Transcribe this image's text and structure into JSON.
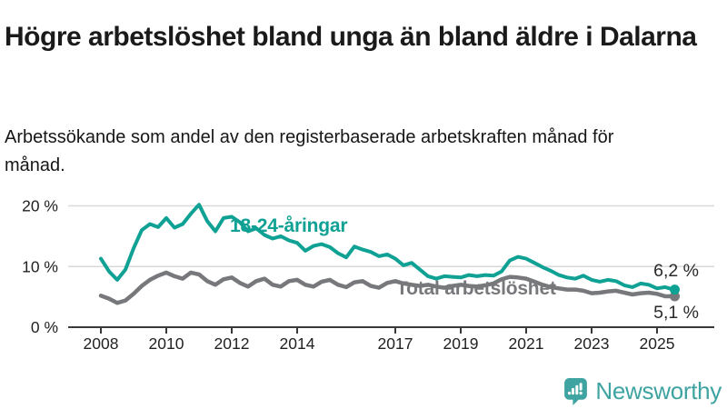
{
  "header": {
    "title": "Högre arbetslöshet bland unga än bland äldre i Dalarna",
    "subtitle": "Arbetssökande som andel av den registerbaserade arbetskraften månad för månad."
  },
  "chart_data": {
    "type": "line",
    "unit": "%",
    "grid": "horizontal-gridlines",
    "legend": "inline-labels-on-lines",
    "xlim": [
      2008,
      2025.6
    ],
    "ylim": [
      0,
      22
    ],
    "x": [
      2008.0,
      2008.25,
      2008.5,
      2008.75,
      2009.0,
      2009.25,
      2009.5,
      2009.75,
      2010.0,
      2010.25,
      2010.5,
      2010.75,
      2011.0,
      2011.25,
      2011.5,
      2011.75,
      2012.0,
      2012.25,
      2012.5,
      2012.75,
      2013.0,
      2013.25,
      2013.5,
      2013.75,
      2014.0,
      2014.25,
      2014.5,
      2014.75,
      2015.0,
      2015.25,
      2015.5,
      2015.75,
      2016.0,
      2016.25,
      2016.5,
      2016.75,
      2017.0,
      2017.25,
      2017.5,
      2017.75,
      2018.0,
      2018.25,
      2018.5,
      2018.75,
      2019.0,
      2019.25,
      2019.5,
      2019.75,
      2020.0,
      2020.25,
      2020.5,
      2020.75,
      2021.0,
      2021.25,
      2021.5,
      2021.75,
      2022.0,
      2022.25,
      2022.5,
      2022.75,
      2023.0,
      2023.25,
      2023.5,
      2023.75,
      2024.0,
      2024.25,
      2024.5,
      2024.75,
      2025.0,
      2025.25,
      2025.5
    ],
    "series": [
      {
        "id": "18-24",
        "name": "18-24-åringar",
        "color": "#0FA194",
        "stroke_width": 4,
        "end_label": "6,2 %",
        "end_value": 6.2,
        "values": [
          11.3,
          9.2,
          7.8,
          9.5,
          13.0,
          16.0,
          17.0,
          16.5,
          18.0,
          16.4,
          17.0,
          18.7,
          20.2,
          17.5,
          15.8,
          18.0,
          18.2,
          17.3,
          15.8,
          16.3,
          15.2,
          14.6,
          15.0,
          14.3,
          13.9,
          12.6,
          13.4,
          13.7,
          13.2,
          12.2,
          11.5,
          13.3,
          12.8,
          12.4,
          11.7,
          12.0,
          11.3,
          10.2,
          10.6,
          9.5,
          8.4,
          8.0,
          8.4,
          8.3,
          8.2,
          8.6,
          8.4,
          8.6,
          8.5,
          9.2,
          11.0,
          11.6,
          11.3,
          10.6,
          9.9,
          9.3,
          8.6,
          8.2,
          8.0,
          8.5,
          7.8,
          7.5,
          7.8,
          7.6,
          6.9,
          6.6,
          7.2,
          7.0,
          6.4,
          6.6,
          6.2
        ]
      },
      {
        "id": "total",
        "name": "Total arbetslöshet",
        "color": "#77787B",
        "stroke_width": 4.5,
        "end_label": "5,1 %",
        "end_value": 5.1,
        "values": [
          5.2,
          4.7,
          4.0,
          4.4,
          5.5,
          6.8,
          7.8,
          8.5,
          9.0,
          8.4,
          8.0,
          9.0,
          8.7,
          7.6,
          7.0,
          7.9,
          8.2,
          7.3,
          6.7,
          7.6,
          8.0,
          7.0,
          6.7,
          7.6,
          7.8,
          7.0,
          6.7,
          7.5,
          7.8,
          7.0,
          6.6,
          7.4,
          7.6,
          6.8,
          6.5,
          7.3,
          7.6,
          7.2,
          7.0,
          6.8,
          7.0,
          6.7,
          6.5,
          6.8,
          7.0,
          6.8,
          6.7,
          6.9,
          7.2,
          7.9,
          8.3,
          8.2,
          8.0,
          7.5,
          7.0,
          6.6,
          6.4,
          6.2,
          6.2,
          6.0,
          5.6,
          5.7,
          5.9,
          6.0,
          5.7,
          5.4,
          5.6,
          5.7,
          5.5,
          5.1,
          5.1
        ]
      }
    ],
    "yticks": [
      {
        "value": 0,
        "label": "0 %"
      },
      {
        "value": 10,
        "label": "10 %"
      },
      {
        "value": 20,
        "label": "20 %"
      }
    ],
    "xticks": [
      {
        "value": 2008,
        "label": "2008"
      },
      {
        "value": 2010,
        "label": "2010"
      },
      {
        "value": 2012,
        "label": "2012"
      },
      {
        "value": 2014,
        "label": "2014"
      },
      {
        "value": 2017,
        "label": "2017"
      },
      {
        "value": 2019,
        "label": "2019"
      },
      {
        "value": 2021,
        "label": "2021"
      },
      {
        "value": 2023,
        "label": "2023"
      },
      {
        "value": 2025,
        "label": "2025"
      }
    ],
    "colors": {
      "gridline": "#d9d9d9",
      "axis": "#3a3a3a",
      "tick_text": "#222222"
    }
  },
  "footer": {
    "brand": "Newsworthy",
    "brand_color": "#3EA3A1",
    "logo_icon": "newsworthy-speech-bubble-bar-chart-icon"
  }
}
